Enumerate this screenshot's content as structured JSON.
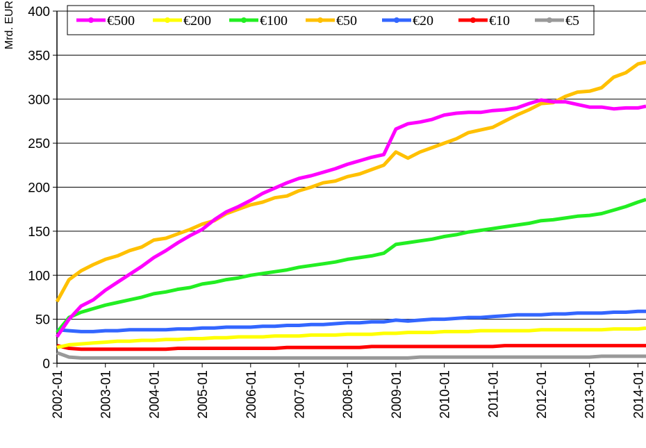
{
  "chart_data": {
    "type": "line",
    "ylabel": "Mrd. EUR",
    "x": [
      "2002-01",
      "2002-04",
      "2002-07",
      "2002-10",
      "2003-01",
      "2003-04",
      "2003-07",
      "2003-10",
      "2004-01",
      "2004-04",
      "2004-07",
      "2004-10",
      "2005-01",
      "2005-04",
      "2005-07",
      "2005-10",
      "2006-01",
      "2006-04",
      "2006-07",
      "2006-10",
      "2007-01",
      "2007-04",
      "2007-07",
      "2007-10",
      "2008-01",
      "2008-04",
      "2008-07",
      "2008-10",
      "2009-01",
      "2009-04",
      "2009-07",
      "2009-10",
      "2010-01",
      "2010-04",
      "2010-07",
      "2010-10",
      "2011-01",
      "2011-04",
      "2011-07",
      "2011-10",
      "2012-01",
      "2012-04",
      "2012-07",
      "2012-10",
      "2013-01",
      "2013-04",
      "2013-07",
      "2013-10",
      "2014-01",
      "2014-03"
    ],
    "series": [
      {
        "name": "€500",
        "color": "#ff00ff",
        "values": [
          30,
          50,
          65,
          72,
          83,
          92,
          101,
          110,
          120,
          128,
          137,
          145,
          152,
          163,
          172,
          178,
          185,
          193,
          199,
          205,
          210,
          213,
          217,
          221,
          226,
          230,
          234,
          237,
          266,
          272,
          274,
          277,
          282,
          284,
          285,
          285,
          287,
          288,
          290,
          295,
          299,
          297,
          297,
          294,
          291,
          291,
          289,
          290,
          290,
          292
        ]
      },
      {
        "name": "€200",
        "color": "#ffff00",
        "values": [
          18,
          21,
          22,
          23,
          24,
          25,
          25,
          26,
          26,
          27,
          27,
          28,
          28,
          29,
          29,
          30,
          30,
          30,
          31,
          31,
          31,
          32,
          32,
          32,
          33,
          33,
          33,
          34,
          34,
          35,
          35,
          35,
          36,
          36,
          36,
          37,
          37,
          37,
          37,
          37,
          38,
          38,
          38,
          38,
          38,
          38,
          39,
          39,
          39,
          40
        ]
      },
      {
        "name": "€100",
        "color": "#22ee22",
        "values": [
          35,
          52,
          58,
          62,
          66,
          69,
          72,
          75,
          79,
          81,
          84,
          86,
          90,
          92,
          95,
          97,
          100,
          102,
          104,
          106,
          109,
          111,
          113,
          115,
          118,
          120,
          122,
          125,
          135,
          137,
          139,
          141,
          144,
          146,
          149,
          151,
          153,
          155,
          157,
          159,
          162,
          163,
          165,
          167,
          168,
          170,
          174,
          178,
          183,
          186
        ]
      },
      {
        "name": "€50",
        "color": "#ffc000",
        "values": [
          70,
          95,
          105,
          112,
          118,
          122,
          128,
          132,
          140,
          142,
          147,
          152,
          158,
          162,
          170,
          175,
          180,
          183,
          188,
          190,
          196,
          200,
          205,
          207,
          212,
          215,
          220,
          225,
          240,
          233,
          240,
          245,
          250,
          255,
          262,
          265,
          268,
          275,
          282,
          288,
          295,
          296,
          303,
          308,
          309,
          313,
          325,
          330,
          340,
          342
        ]
      },
      {
        "name": "€20",
        "color": "#3366ff",
        "values": [
          38,
          37,
          36,
          36,
          37,
          37,
          38,
          38,
          38,
          38,
          39,
          39,
          40,
          40,
          41,
          41,
          41,
          42,
          42,
          43,
          43,
          44,
          44,
          45,
          46,
          46,
          47,
          47,
          49,
          48,
          49,
          50,
          50,
          51,
          52,
          52,
          53,
          54,
          55,
          55,
          55,
          56,
          56,
          57,
          57,
          57,
          58,
          58,
          59,
          59
        ]
      },
      {
        "name": "€10",
        "color": "#ff0000",
        "values": [
          20,
          17,
          16,
          16,
          16,
          16,
          16,
          16,
          16,
          16,
          17,
          17,
          17,
          17,
          17,
          17,
          17,
          17,
          17,
          18,
          18,
          18,
          18,
          18,
          18,
          18,
          19,
          19,
          19,
          19,
          19,
          19,
          19,
          19,
          19,
          19,
          19,
          20,
          20,
          20,
          20,
          20,
          20,
          20,
          20,
          20,
          20,
          20,
          20,
          20
        ]
      },
      {
        "name": "€5",
        "color": "#999999",
        "values": [
          12,
          7,
          6,
          6,
          6,
          6,
          6,
          6,
          6,
          6,
          6,
          6,
          6,
          6,
          6,
          6,
          6,
          6,
          6,
          6,
          6,
          6,
          6,
          6,
          6,
          6,
          6,
          6,
          6,
          6,
          7,
          7,
          7,
          7,
          7,
          7,
          7,
          7,
          7,
          7,
          7,
          7,
          7,
          7,
          7,
          8,
          8,
          8,
          8,
          8
        ]
      }
    ],
    "xlim": [
      "2002-01",
      "2014-03"
    ],
    "xticks": [
      "2002-01",
      "2003-01",
      "2004-01",
      "2005-01",
      "2006-01",
      "2007-01",
      "2008-01",
      "2009-01",
      "2010-01",
      "2011-01",
      "2012-01",
      "2013-01",
      "2014-01"
    ],
    "ylim": [
      0,
      400
    ],
    "yticks": [
      0,
      50,
      100,
      150,
      200,
      250,
      300,
      350,
      400
    ],
    "grid": true,
    "legend": "top"
  }
}
